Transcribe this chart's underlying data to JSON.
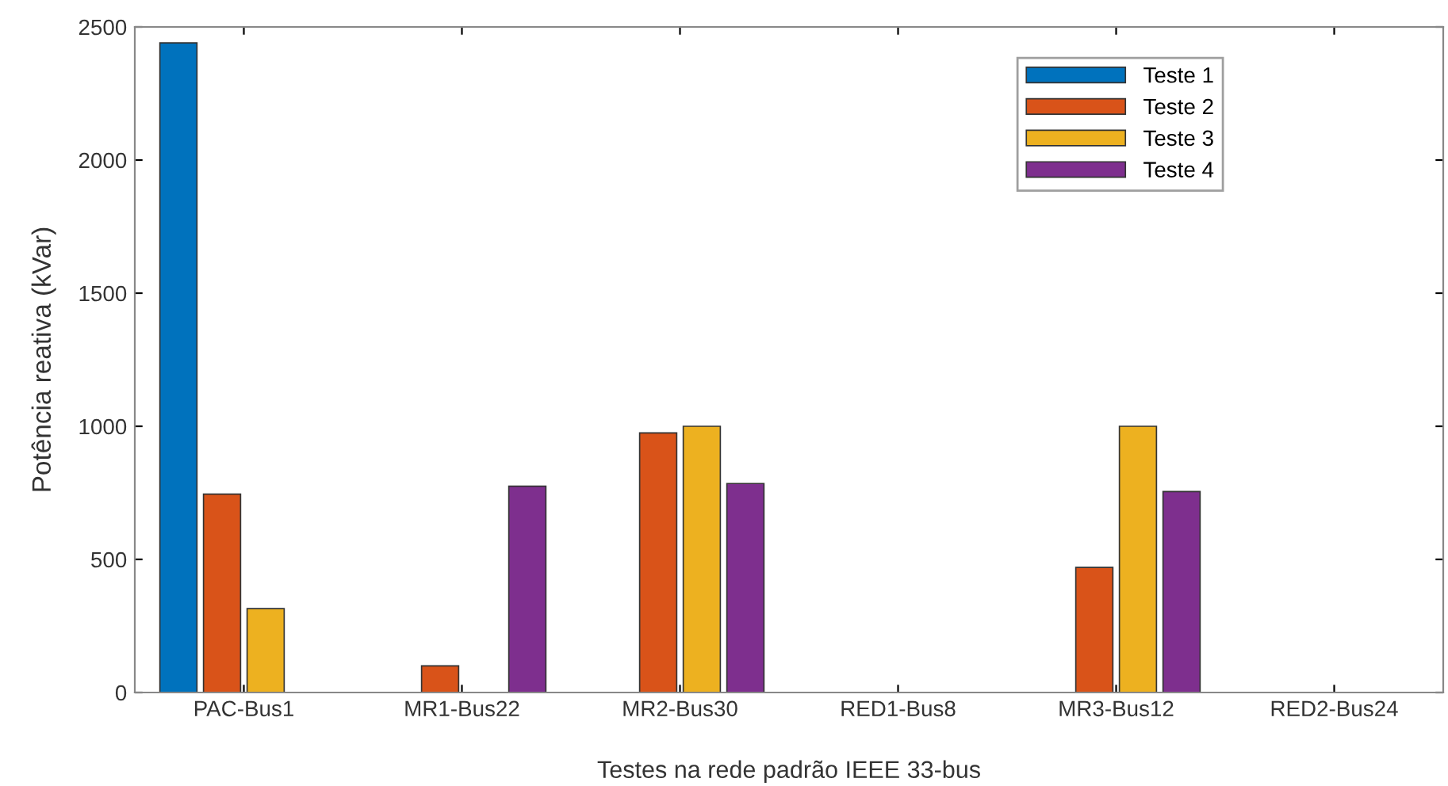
{
  "chart_data": {
    "type": "bar",
    "xlabel": "Testes na rede padrão IEEE 33-bus",
    "ylabel": "Potência reativa (kVar)",
    "categories": [
      "PAC-Bus1",
      "MR1-Bus22",
      "MR2-Bus30",
      "RED1-Bus8",
      "MR3-Bus12",
      "RED2-Bus24"
    ],
    "series": [
      {
        "name": "Teste 1",
        "color": "#0072bd",
        "values": [
          2440,
          null,
          null,
          null,
          null,
          null
        ]
      },
      {
        "name": "Teste 2",
        "color": "#d95319",
        "values": [
          745,
          100,
          975,
          null,
          470,
          null
        ]
      },
      {
        "name": "Teste 3",
        "color": "#edb120",
        "values": [
          315,
          null,
          1000,
          null,
          1000,
          null
        ]
      },
      {
        "name": "Teste 4",
        "color": "#7e2f8e",
        "values": [
          null,
          775,
          785,
          null,
          755,
          null
        ]
      }
    ],
    "ylim": [
      0,
      2500
    ],
    "yticks": [
      0,
      500,
      1000,
      1500,
      2000,
      2500
    ],
    "grid": false,
    "legend": "top right"
  }
}
